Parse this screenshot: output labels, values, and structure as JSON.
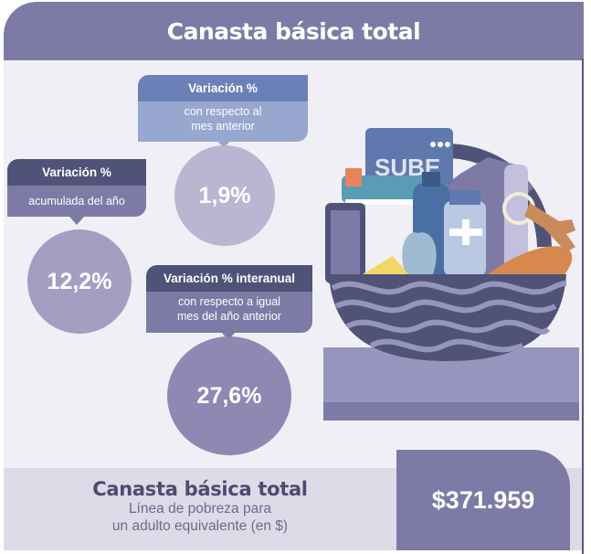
{
  "header": {
    "title": "Canasta básica total"
  },
  "monthly": {
    "heading": "Variación %",
    "description_line1": "con respecto al",
    "description_line2": "mes anterior",
    "value": "1,9%"
  },
  "ytd": {
    "heading": "Variación %",
    "description": "acumulada del año",
    "value": "12,2%"
  },
  "yoy": {
    "heading": "Variación % interanual",
    "description_line1": "con respecto a igual",
    "description_line2": "mes del año anterior",
    "value": "27,6%"
  },
  "basket": {
    "card_text": "SUBE"
  },
  "footer": {
    "title": "Canasta básica total",
    "subtitle_line1": "Línea de pobreza para",
    "subtitle_line2": "un adulto equivalente (en $)",
    "value": "$371.959"
  },
  "colors": {
    "header": "#7d7aa6",
    "tab_blue": "#6c80b8",
    "tab_dark": "#4f5378",
    "circle_light": "#b9b6d1",
    "circle_mid": "#a39fc3",
    "circle_dark": "#8d89b3"
  }
}
